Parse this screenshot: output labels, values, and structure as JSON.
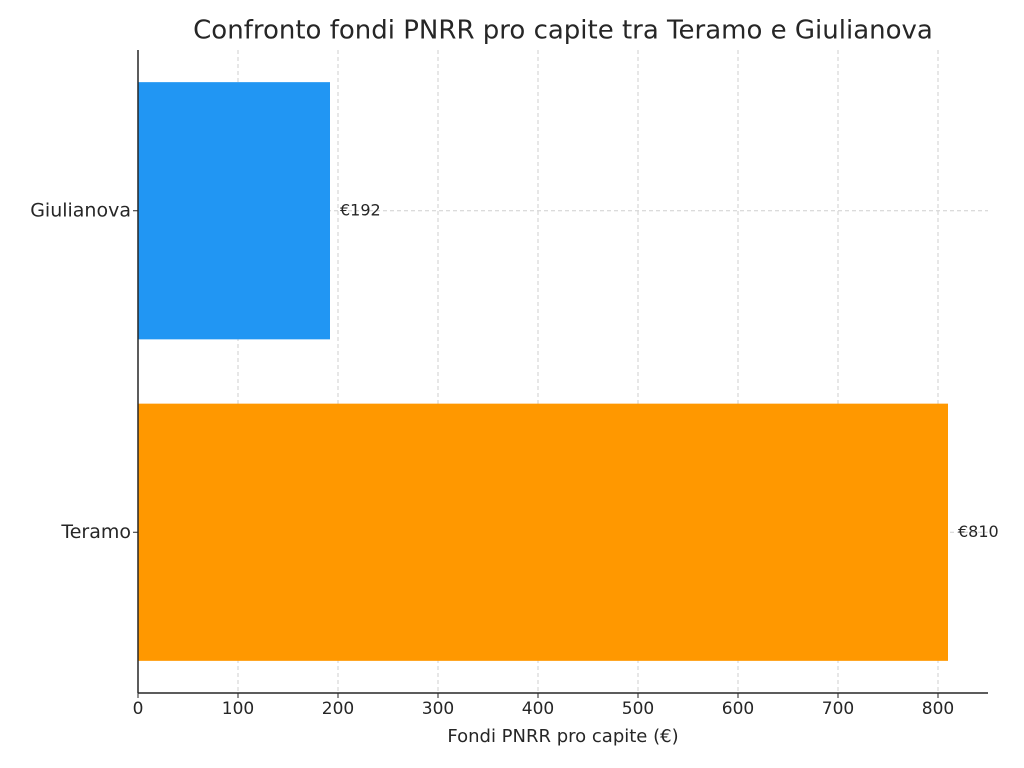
{
  "chart_data": {
    "type": "barh",
    "title": "Confronto fondi PNRR pro capite tra Teramo e Giulianova",
    "xlabel": "Fondi PNRR pro capite (€)",
    "categories": [
      "Teramo",
      "Giulianova"
    ],
    "values": [
      810,
      192
    ],
    "value_labels": [
      "€810",
      "€192"
    ],
    "colors": [
      "#ff9800",
      "#2196f3"
    ],
    "xlim": [
      0,
      850
    ],
    "xticks": [
      0,
      100,
      200,
      300,
      400,
      500,
      600,
      700,
      800
    ],
    "grid": true
  }
}
